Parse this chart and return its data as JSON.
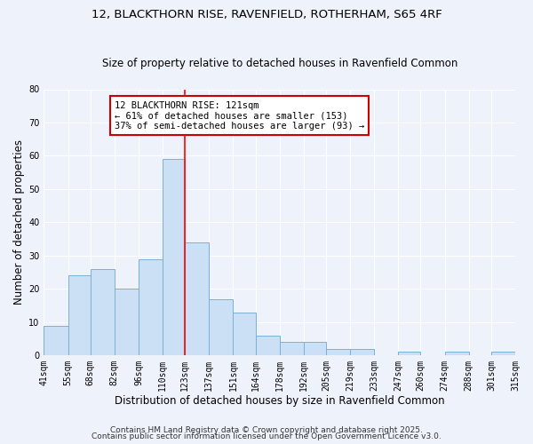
{
  "title": "12, BLACKTHORN RISE, RAVENFIELD, ROTHERHAM, S65 4RF",
  "subtitle": "Size of property relative to detached houses in Ravenfield Common",
  "xlabel": "Distribution of detached houses by size in Ravenfield Common",
  "ylabel": "Number of detached properties",
  "bar_edges": [
    41,
    55,
    68,
    82,
    96,
    110,
    123,
    137,
    151,
    164,
    178,
    192,
    205,
    219,
    233,
    247,
    260,
    274,
    288,
    301,
    315
  ],
  "bar_heights": [
    9,
    24,
    26,
    20,
    29,
    59,
    34,
    17,
    13,
    6,
    4,
    4,
    2,
    2,
    0,
    1,
    0,
    1,
    0,
    1
  ],
  "bar_color": "#cce0f5",
  "bar_edge_color": "#7ab0d4",
  "vline_x": 123,
  "vline_color": "red",
  "annotation_text": "12 BLACKTHORN RISE: 121sqm\n← 61% of detached houses are smaller (153)\n37% of semi-detached houses are larger (93) →",
  "annotation_box_color": "white",
  "annotation_border_color": "#cc0000",
  "ylim": [
    0,
    80
  ],
  "yticks": [
    0,
    10,
    20,
    30,
    40,
    50,
    60,
    70,
    80
  ],
  "xtick_labels": [
    "41sqm",
    "55sqm",
    "68sqm",
    "82sqm",
    "96sqm",
    "110sqm",
    "123sqm",
    "137sqm",
    "151sqm",
    "164sqm",
    "178sqm",
    "192sqm",
    "205sqm",
    "219sqm",
    "233sqm",
    "247sqm",
    "260sqm",
    "274sqm",
    "288sqm",
    "301sqm",
    "315sqm"
  ],
  "footer1": "Contains HM Land Registry data © Crown copyright and database right 2025.",
  "footer2": "Contains public sector information licensed under the Open Government Licence v3.0.",
  "background_color": "#eef2fb",
  "grid_color": "#ffffff",
  "title_fontsize": 9.5,
  "subtitle_fontsize": 8.5,
  "axis_label_fontsize": 8.5,
  "tick_fontsize": 7,
  "annotation_fontsize": 7.5,
  "footer_fontsize": 6.5
}
